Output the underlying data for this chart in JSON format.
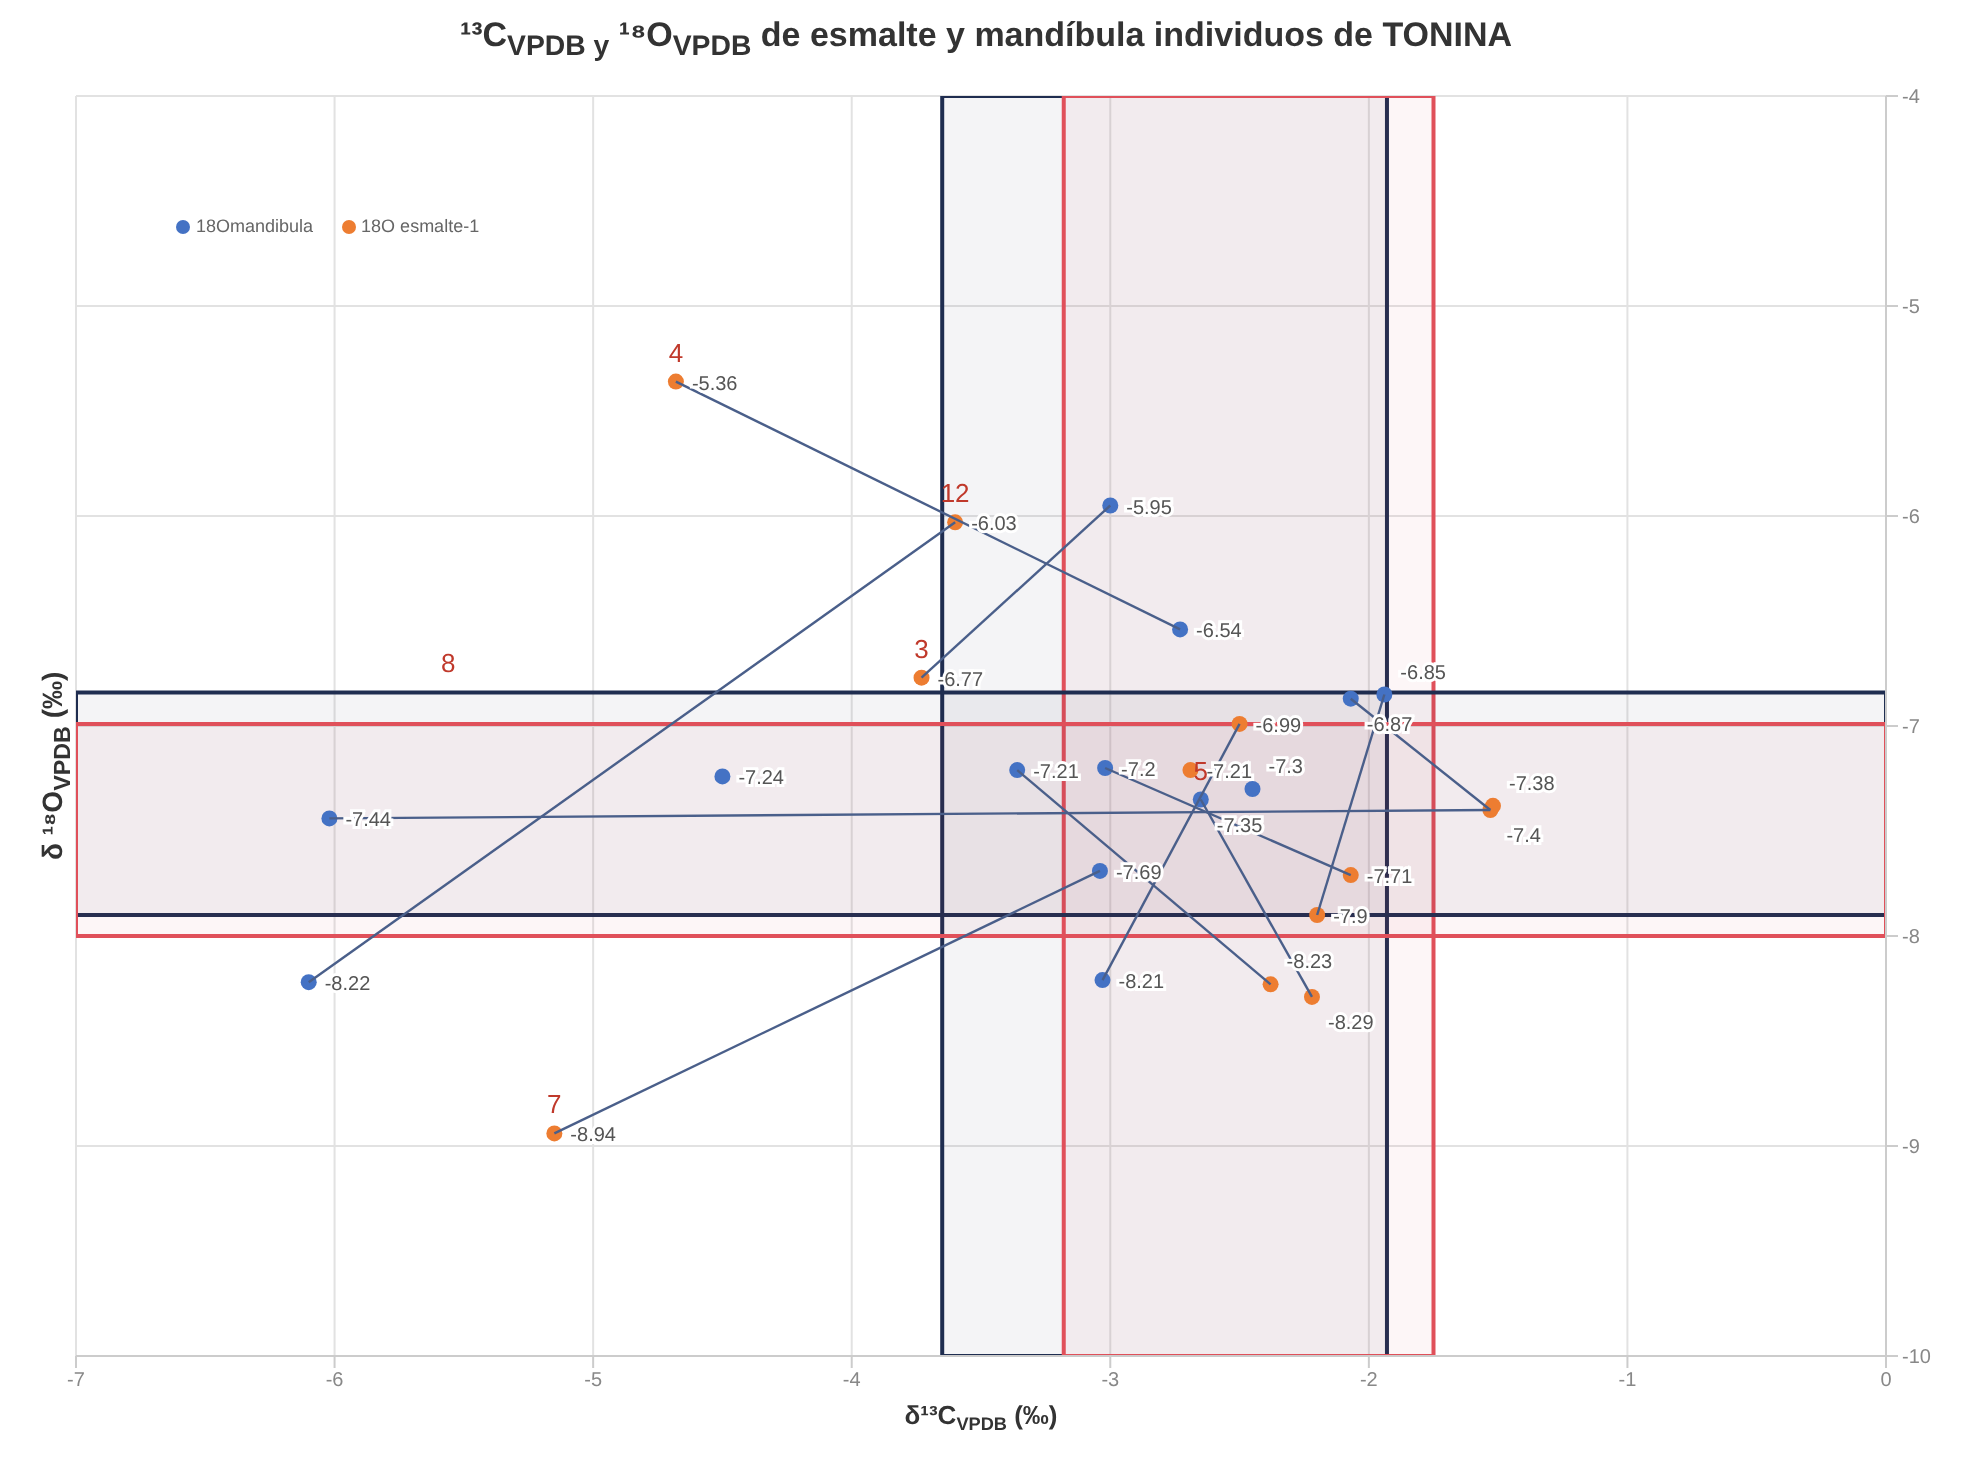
{
  "chart_data": {
    "type": "scatter",
    "title": "¹³C$_{VPDB y}$ ¹⁸O$_{VPDB}$ de  esmalte y mandíbula individuos de  TONINA",
    "xlabel": "δ¹³C$_{VPDB}$ (‰)",
    "ylabel": "δ ¹⁸O$_{VPDB}$ (‰)",
    "xlim": [
      -7,
      0
    ],
    "xticks": [
      -7,
      -6,
      -5,
      -4,
      -3,
      -2,
      -1,
      0
    ],
    "ylim": [
      -10,
      -4
    ],
    "yticks": [
      -10,
      -9,
      -8,
      -7,
      -6,
      -5,
      -4
    ],
    "grid": true,
    "legend": "top left",
    "marker": "circle",
    "series": [
      {
        "name": "18Omandibula",
        "color": "#4472c4",
        "x": [
          -6.02,
          -6.1,
          -4.5,
          -3.0,
          -2.73,
          -3.36,
          -3.02,
          -2.45,
          -2.65,
          -3.04,
          -3.03,
          -2.07,
          -1.94
        ],
        "values": [
          -7.44,
          -8.22,
          -7.24,
          -5.95,
          -6.54,
          -7.21,
          -7.2,
          -7.3,
          -7.35,
          -7.69,
          -8.21,
          -6.87,
          -6.85
        ],
        "value_labels": [
          "-7.44",
          "-8.22",
          "-7.24",
          "-5.95",
          "-6.54",
          "-7.21",
          "-7.2",
          "-7.3",
          "-7.35",
          "-7.69",
          "-8.21",
          "-6.87",
          "-6.85"
        ]
      },
      {
        "name": "18O esmalte-1",
        "color": "#ed7d31",
        "x": [
          -4.68,
          -3.6,
          -3.73,
          -5.15,
          -2.5,
          -2.69,
          -1.53,
          -1.52,
          -2.07,
          -2.2,
          -2.38,
          -2.22
        ],
        "values": [
          -5.36,
          -6.03,
          -6.77,
          -8.94,
          -6.99,
          -7.21,
          -7.4,
          -7.38,
          -7.71,
          -7.9,
          -8.23,
          -8.29
        ],
        "value_labels": [
          "-5.36",
          "-6.03",
          "-6.77",
          "-8.94",
          "-6.99",
          "-7.21",
          "-7.4",
          "-7.38",
          "-7.71",
          "-7.9",
          "-8.23",
          "-8.29"
        ]
      },
      {
        "type": "line",
        "marker": "none",
        "color": "#4a5f8a",
        "x": [
          -4.68,
          -2.73
        ],
        "values": [
          -5.36,
          -6.54
        ]
      },
      {
        "type": "line",
        "marker": "none",
        "color": "#4a5f8a",
        "x": [
          -3.6,
          -6.1
        ],
        "values": [
          -6.03,
          -8.22
        ]
      },
      {
        "type": "line",
        "marker": "none",
        "color": "#4a5f8a",
        "x": [
          -3.73,
          -3.0
        ],
        "values": [
          -6.77,
          -5.95
        ]
      },
      {
        "type": "line",
        "marker": "none",
        "color": "#4a5f8a",
        "x": [
          -5.15,
          -3.04
        ],
        "values": [
          -8.94,
          -7.69
        ]
      },
      {
        "type": "line",
        "marker": "none",
        "color": "#4a5f8a",
        "x": [
          -6.02,
          -1.53
        ],
        "values": [
          -7.44,
          -7.4
        ]
      },
      {
        "type": "line",
        "marker": "none",
        "color": "#4a5f8a",
        "x": [
          -3.36,
          -2.38
        ],
        "values": [
          -7.21,
          -8.23
        ]
      },
      {
        "type": "line",
        "marker": "none",
        "color": "#4a5f8a",
        "x": [
          -3.02,
          -2.07
        ],
        "values": [
          -7.2,
          -7.71
        ]
      },
      {
        "type": "line",
        "marker": "none",
        "color": "#4a5f8a",
        "x": [
          -2.5,
          -3.03
        ],
        "values": [
          -6.99,
          -8.21
        ]
      },
      {
        "type": "line",
        "marker": "none",
        "color": "#4a5f8a",
        "x": [
          -2.65,
          -2.22
        ],
        "values": [
          -7.35,
          -8.29
        ]
      },
      {
        "type": "line",
        "marker": "none",
        "color": "#4a5f8a",
        "x": [
          -1.94,
          -2.2
        ],
        "values": [
          -6.85,
          -7.9
        ]
      },
      {
        "type": "line",
        "marker": "none",
        "color": "#4a5f8a",
        "x": [
          -2.07,
          -1.53
        ],
        "values": [
          -6.87,
          -7.4
        ]
      }
    ],
    "bands": [
      {
        "axis": "x",
        "from": -3.65,
        "to": -1.93,
        "color": "#1f2d50"
      },
      {
        "axis": "x",
        "from": -3.18,
        "to": -1.75,
        "color": "#e0505a"
      },
      {
        "axis": "y",
        "from": -7.9,
        "to": -6.84,
        "color": "#1f2d50"
      },
      {
        "axis": "y",
        "from": -8.0,
        "to": -6.99,
        "color": "#e0505a"
      }
    ],
    "annotations": [
      {
        "text": "4",
        "x": -4.68,
        "y": -5.36
      },
      {
        "text": "12",
        "x": -3.6,
        "y": -6.03
      },
      {
        "text": "3",
        "x": -3.73,
        "y": -6.77
      },
      {
        "text": "7",
        "x": -5.15,
        "y": -8.94
      },
      {
        "text": "8",
        "x": -5.56,
        "y": -6.84
      },
      {
        "text": "5",
        "x": -2.65,
        "y": -7.35
      }
    ]
  }
}
